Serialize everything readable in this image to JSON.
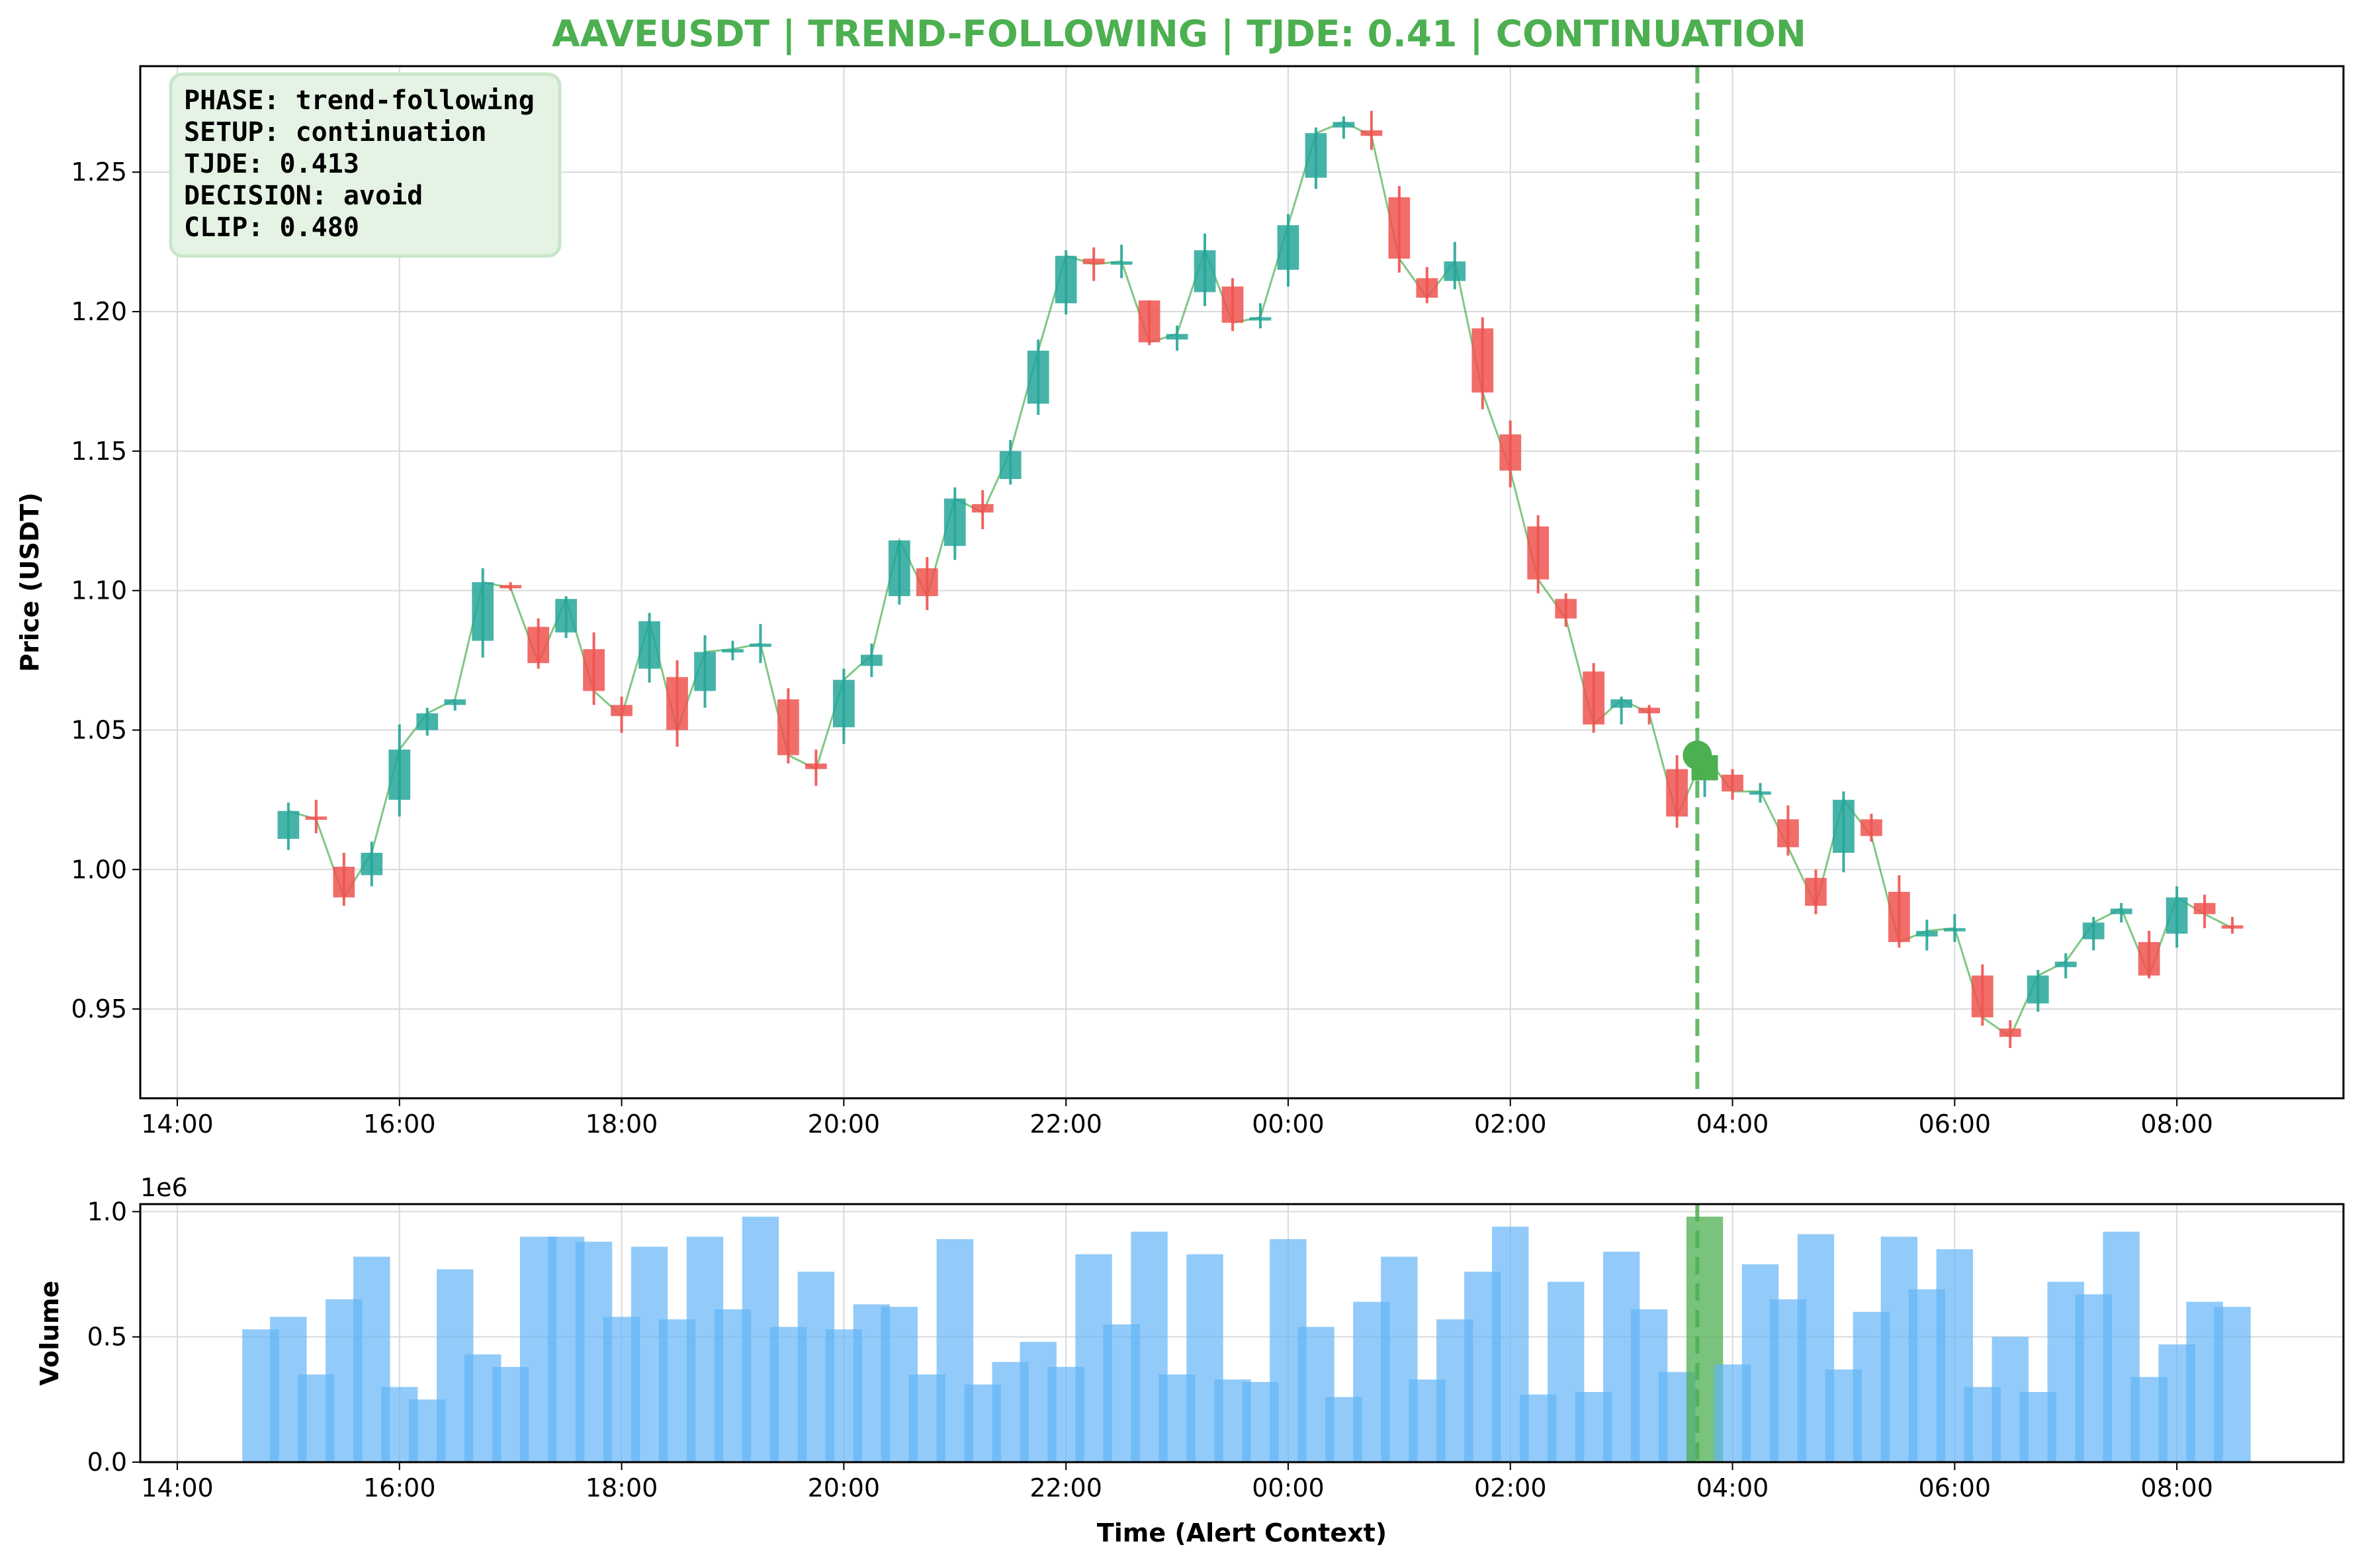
{
  "chart_data": [
    {
      "type": "candlestick",
      "title": "AAVEUSDT | TREND-FOLLOWING | TJDE: 0.41 | CONTINUATION",
      "ylabel": "Price (USDT)",
      "xlim": [
        "14:00",
        "09:30"
      ],
      "ylim": [
        0.918,
        1.288
      ],
      "yticks": [
        "0.95",
        "1.00",
        "1.05",
        "1.10",
        "1.15",
        "1.20",
        "1.25"
      ],
      "xticks": [
        "14:00",
        "16:00",
        "18:00",
        "20:00",
        "22:00",
        "00:00",
        "02:00",
        "04:00",
        "06:00",
        "08:00"
      ],
      "grid": true,
      "colors": {
        "up": "#26a69a",
        "down": "#ef5350",
        "close_line": "#4caf50",
        "alert": "#4caf50",
        "title": "#4caf50"
      },
      "info_box": [
        "PHASE: trend-following",
        "SETUP: continuation",
        "TJDE: 0.413",
        "DECISION: avoid",
        "CLIP: 0.480"
      ],
      "alert": {
        "time": "03:41",
        "price": 1.041
      },
      "candles": [
        {
          "t": "15:00",
          "o": 1.011,
          "h": 1.024,
          "l": 1.007,
          "c": 1.021
        },
        {
          "t": "15:15",
          "o": 1.019,
          "h": 1.025,
          "l": 1.013,
          "c": 1.018
        },
        {
          "t": "15:30",
          "o": 1.001,
          "h": 1.006,
          "l": 0.987,
          "c": 0.99
        },
        {
          "t": "15:45",
          "o": 0.998,
          "h": 1.01,
          "l": 0.994,
          "c": 1.006
        },
        {
          "t": "16:00",
          "o": 1.025,
          "h": 1.052,
          "l": 1.019,
          "c": 1.043
        },
        {
          "t": "16:15",
          "o": 1.05,
          "h": 1.058,
          "l": 1.048,
          "c": 1.056
        },
        {
          "t": "16:30",
          "o": 1.059,
          "h": 1.061,
          "l": 1.057,
          "c": 1.061
        },
        {
          "t": "16:45",
          "o": 1.082,
          "h": 1.108,
          "l": 1.076,
          "c": 1.103
        },
        {
          "t": "17:00",
          "o": 1.102,
          "h": 1.103,
          "l": 1.1,
          "c": 1.101
        },
        {
          "t": "17:15",
          "o": 1.087,
          "h": 1.09,
          "l": 1.072,
          "c": 1.074
        },
        {
          "t": "17:30",
          "o": 1.085,
          "h": 1.098,
          "l": 1.083,
          "c": 1.097
        },
        {
          "t": "17:45",
          "o": 1.079,
          "h": 1.085,
          "l": 1.059,
          "c": 1.064
        },
        {
          "t": "18:00",
          "o": 1.059,
          "h": 1.062,
          "l": 1.049,
          "c": 1.055
        },
        {
          "t": "18:15",
          "o": 1.072,
          "h": 1.092,
          "l": 1.067,
          "c": 1.089
        },
        {
          "t": "18:30",
          "o": 1.069,
          "h": 1.075,
          "l": 1.044,
          "c": 1.05
        },
        {
          "t": "18:45",
          "o": 1.064,
          "h": 1.084,
          "l": 1.058,
          "c": 1.078
        },
        {
          "t": "19:00",
          "o": 1.078,
          "h": 1.082,
          "l": 1.075,
          "c": 1.079
        },
        {
          "t": "19:15",
          "o": 1.08,
          "h": 1.088,
          "l": 1.074,
          "c": 1.081
        },
        {
          "t": "19:30",
          "o": 1.061,
          "h": 1.065,
          "l": 1.038,
          "c": 1.041
        },
        {
          "t": "19:45",
          "o": 1.038,
          "h": 1.043,
          "l": 1.03,
          "c": 1.036
        },
        {
          "t": "20:00",
          "o": 1.051,
          "h": 1.072,
          "l": 1.045,
          "c": 1.068
        },
        {
          "t": "20:15",
          "o": 1.073,
          "h": 1.081,
          "l": 1.069,
          "c": 1.077
        },
        {
          "t": "20:30",
          "o": 1.098,
          "h": 1.118,
          "l": 1.095,
          "c": 1.118
        },
        {
          "t": "20:45",
          "o": 1.108,
          "h": 1.112,
          "l": 1.093,
          "c": 1.098
        },
        {
          "t": "21:00",
          "o": 1.116,
          "h": 1.137,
          "l": 1.111,
          "c": 1.133
        },
        {
          "t": "21:15",
          "o": 1.131,
          "h": 1.136,
          "l": 1.122,
          "c": 1.128
        },
        {
          "t": "21:30",
          "o": 1.14,
          "h": 1.154,
          "l": 1.138,
          "c": 1.15
        },
        {
          "t": "21:45",
          "o": 1.167,
          "h": 1.19,
          "l": 1.163,
          "c": 1.186
        },
        {
          "t": "22:00",
          "o": 1.203,
          "h": 1.222,
          "l": 1.199,
          "c": 1.22
        },
        {
          "t": "22:15",
          "o": 1.219,
          "h": 1.223,
          "l": 1.211,
          "c": 1.217
        },
        {
          "t": "22:30",
          "o": 1.218,
          "h": 1.224,
          "l": 1.212,
          "c": 1.218
        },
        {
          "t": "22:45",
          "o": 1.204,
          "h": 1.204,
          "l": 1.188,
          "c": 1.189
        },
        {
          "t": "23:00",
          "o": 1.19,
          "h": 1.195,
          "l": 1.186,
          "c": 1.192
        },
        {
          "t": "23:15",
          "o": 1.207,
          "h": 1.228,
          "l": 1.202,
          "c": 1.222
        },
        {
          "t": "23:30",
          "o": 1.209,
          "h": 1.212,
          "l": 1.193,
          "c": 1.196
        },
        {
          "t": "23:45",
          "o": 1.197,
          "h": 1.203,
          "l": 1.194,
          "c": 1.198
        },
        {
          "t": "00:00",
          "o": 1.215,
          "h": 1.235,
          "l": 1.209,
          "c": 1.231
        },
        {
          "t": "00:15",
          "o": 1.248,
          "h": 1.266,
          "l": 1.244,
          "c": 1.264
        },
        {
          "t": "00:30",
          "o": 1.266,
          "h": 1.27,
          "l": 1.262,
          "c": 1.268
        },
        {
          "t": "00:45",
          "o": 1.265,
          "h": 1.272,
          "l": 1.258,
          "c": 1.263
        },
        {
          "t": "01:00",
          "o": 1.241,
          "h": 1.245,
          "l": 1.214,
          "c": 1.219
        },
        {
          "t": "01:15",
          "o": 1.212,
          "h": 1.216,
          "l": 1.203,
          "c": 1.205
        },
        {
          "t": "01:30",
          "o": 1.211,
          "h": 1.225,
          "l": 1.208,
          "c": 1.218
        },
        {
          "t": "01:45",
          "o": 1.194,
          "h": 1.198,
          "l": 1.165,
          "c": 1.171
        },
        {
          "t": "02:00",
          "o": 1.156,
          "h": 1.161,
          "l": 1.137,
          "c": 1.143
        },
        {
          "t": "02:15",
          "o": 1.123,
          "h": 1.127,
          "l": 1.099,
          "c": 1.104
        },
        {
          "t": "02:30",
          "o": 1.097,
          "h": 1.099,
          "l": 1.087,
          "c": 1.09
        },
        {
          "t": "02:45",
          "o": 1.071,
          "h": 1.074,
          "l": 1.049,
          "c": 1.052
        },
        {
          "t": "03:00",
          "o": 1.058,
          "h": 1.062,
          "l": 1.052,
          "c": 1.061
        },
        {
          "t": "03:15",
          "o": 1.058,
          "h": 1.059,
          "l": 1.052,
          "c": 1.056
        },
        {
          "t": "03:30",
          "o": 1.036,
          "h": 1.041,
          "l": 1.015,
          "c": 1.019
        },
        {
          "t": "03:45",
          "o": 1.032,
          "h": 1.041,
          "l": 1.026,
          "c": 1.041
        },
        {
          "t": "04:00",
          "o": 1.034,
          "h": 1.036,
          "l": 1.025,
          "c": 1.028
        },
        {
          "t": "04:15",
          "o": 1.027,
          "h": 1.031,
          "l": 1.024,
          "c": 1.028
        },
        {
          "t": "04:30",
          "o": 1.018,
          "h": 1.023,
          "l": 1.005,
          "c": 1.008
        },
        {
          "t": "04:45",
          "o": 0.997,
          "h": 1.0,
          "l": 0.984,
          "c": 0.987
        },
        {
          "t": "05:00",
          "o": 1.006,
          "h": 1.028,
          "l": 0.999,
          "c": 1.025
        },
        {
          "t": "05:15",
          "o": 1.018,
          "h": 1.02,
          "l": 1.01,
          "c": 1.012
        },
        {
          "t": "05:30",
          "o": 0.992,
          "h": 0.998,
          "l": 0.972,
          "c": 0.974
        },
        {
          "t": "05:45",
          "o": 0.976,
          "h": 0.982,
          "l": 0.971,
          "c": 0.978
        },
        {
          "t": "06:00",
          "o": 0.978,
          "h": 0.984,
          "l": 0.974,
          "c": 0.979
        },
        {
          "t": "06:15",
          "o": 0.962,
          "h": 0.966,
          "l": 0.944,
          "c": 0.947
        },
        {
          "t": "06:30",
          "o": 0.943,
          "h": 0.946,
          "l": 0.936,
          "c": 0.94
        },
        {
          "t": "06:45",
          "o": 0.952,
          "h": 0.964,
          "l": 0.949,
          "c": 0.962
        },
        {
          "t": "07:00",
          "o": 0.965,
          "h": 0.97,
          "l": 0.961,
          "c": 0.967
        },
        {
          "t": "07:15",
          "o": 0.975,
          "h": 0.983,
          "l": 0.971,
          "c": 0.981
        },
        {
          "t": "07:30",
          "o": 0.984,
          "h": 0.988,
          "l": 0.981,
          "c": 0.986
        },
        {
          "t": "07:45",
          "o": 0.974,
          "h": 0.978,
          "l": 0.961,
          "c": 0.962
        },
        {
          "t": "08:00",
          "o": 0.977,
          "h": 0.994,
          "l": 0.972,
          "c": 0.99
        },
        {
          "t": "08:15",
          "o": 0.988,
          "h": 0.991,
          "l": 0.979,
          "c": 0.984
        },
        {
          "t": "08:30",
          "o": 0.98,
          "h": 0.983,
          "l": 0.977,
          "c": 0.979
        }
      ]
    },
    {
      "type": "bar",
      "ylabel": "Volume",
      "xlabel": "Time (Alert Context)",
      "offset_label": "1e6",
      "ylim": [
        0,
        1.03
      ],
      "yticks": [
        "0.0",
        "0.5",
        "1.0"
      ],
      "xticks": [
        "14:00",
        "16:00",
        "18:00",
        "20:00",
        "22:00",
        "00:00",
        "02:00",
        "04:00",
        "06:00",
        "08:00"
      ],
      "grid": true,
      "colors": {
        "bar": "#64b5f6",
        "alert_bar": "#4caf50"
      },
      "x": [
        "14:45",
        "15:00",
        "15:15",
        "15:30",
        "15:45",
        "16:00",
        "16:15",
        "16:30",
        "16:45",
        "17:00",
        "17:15",
        "17:30",
        "17:45",
        "18:00",
        "18:15",
        "18:30",
        "18:45",
        "19:00",
        "19:15",
        "19:30",
        "19:45",
        "20:00",
        "20:15",
        "20:30",
        "20:45",
        "21:00",
        "21:15",
        "21:30",
        "21:45",
        "22:00",
        "22:15",
        "22:30",
        "22:45",
        "23:00",
        "23:15",
        "23:30",
        "23:45",
        "00:00",
        "00:15",
        "00:30",
        "00:45",
        "01:00",
        "01:15",
        "01:30",
        "01:45",
        "02:00",
        "02:15",
        "02:30",
        "02:45",
        "03:00",
        "03:15",
        "03:30",
        "03:45",
        "04:00",
        "04:15",
        "04:30",
        "04:45",
        "05:00",
        "05:15",
        "05:30",
        "05:45",
        "06:00",
        "06:15",
        "06:30",
        "06:45",
        "07:00",
        "07:15",
        "07:30",
        "07:45",
        "08:00",
        "08:15",
        "08:30"
      ],
      "values": [
        0.53,
        0.58,
        0.35,
        0.65,
        0.82,
        0.3,
        0.25,
        0.77,
        0.43,
        0.38,
        0.9,
        0.9,
        0.88,
        0.58,
        0.86,
        0.57,
        0.9,
        0.61,
        0.98,
        0.54,
        0.76,
        0.53,
        0.63,
        0.62,
        0.35,
        0.89,
        0.31,
        0.4,
        0.48,
        0.38,
        0.83,
        0.55,
        0.92,
        0.35,
        0.83,
        0.33,
        0.32,
        0.89,
        0.54,
        0.26,
        0.64,
        0.82,
        0.33,
        0.57,
        0.76,
        0.94,
        0.27,
        0.72,
        0.28,
        0.84,
        0.61,
        0.36,
        0.98,
        0.39,
        0.79,
        0.65,
        0.91,
        0.37,
        0.6,
        0.9,
        0.69,
        0.85,
        0.3,
        0.5,
        0.28,
        0.72,
        0.67,
        0.92,
        0.34,
        0.47,
        0.64,
        0.62
      ],
      "alert_index": 52
    }
  ]
}
